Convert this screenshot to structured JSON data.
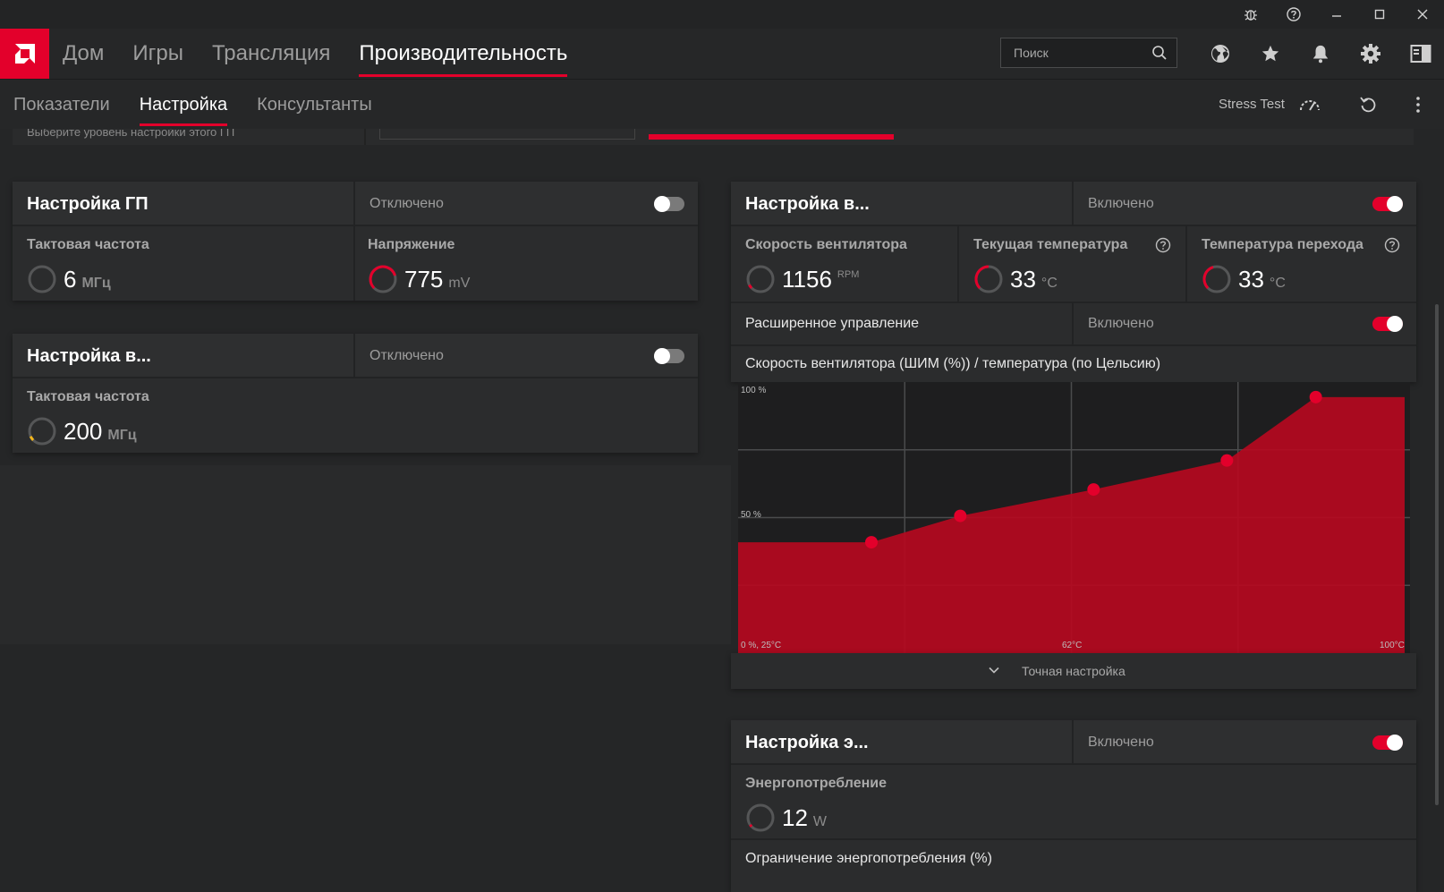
{
  "titlebar": {
    "icons": [
      "bug-icon",
      "help-icon",
      "minimize-icon",
      "maximize-icon",
      "close-icon"
    ]
  },
  "topnav": {
    "tabs": [
      {
        "label": "Дом"
      },
      {
        "label": "Игры"
      },
      {
        "label": "Трансляция"
      },
      {
        "label": "Производительность"
      }
    ],
    "active_tab": "Производительность",
    "search": {
      "placeholder": "Поиск"
    },
    "icons": [
      "globe-icon",
      "star-icon",
      "bell-icon",
      "gear-icon",
      "sidebar-icon"
    ]
  },
  "subnav": {
    "tabs": [
      {
        "label": "Показатели"
      },
      {
        "label": "Настройка"
      },
      {
        "label": "Консультанты"
      }
    ],
    "active_tab": "Настройка",
    "stress_test": "Stress Test",
    "icons": [
      "speedometer-icon",
      "reset-icon",
      "more-vertical-icon"
    ]
  },
  "peek": {
    "text": "Выберите уровень настройки этого ГП"
  },
  "gpu_tuning": {
    "title": "Настройка ГП",
    "status": "Отключено",
    "enabled": false,
    "metrics": [
      {
        "label": "Тактовая частота",
        "value": "6",
        "unit": "МГц"
      },
      {
        "label": "Напряжение",
        "value": "775",
        "unit": "mV"
      }
    ]
  },
  "vram_tuning": {
    "title": "Настройка в...",
    "status": "Отключено",
    "enabled": false,
    "metrics": [
      {
        "label": "Тактовая частота",
        "value": "200",
        "unit": "МГц"
      }
    ]
  },
  "fan_tuning": {
    "title": "Настройка в...",
    "status": "Включено",
    "enabled": true,
    "metrics": [
      {
        "label": "Скорость вентилятора",
        "value": "1156",
        "unit": "RPM"
      },
      {
        "label": "Текущая температура",
        "value": "33",
        "unit": "°C"
      },
      {
        "label": "Температура перехода",
        "value": "33",
        "unit": "°C"
      }
    ],
    "advanced": {
      "label": "Расширенное управление",
      "status": "Включено",
      "enabled": true
    },
    "curve_title": "Скорость вентилятора (ШИМ (%)) / температура (по Цельсию)",
    "fine_tune": "Точная настройка"
  },
  "chart_data": {
    "type": "area",
    "title": "Скорость вентилятора (ШИМ (%)) / температура (по Цельсию)",
    "x_range": [
      25,
      100
    ],
    "y_range": [
      0,
      100
    ],
    "labels": {
      "y_top": "100 %",
      "y_mid": "50 %",
      "origin": "0 %, 25°C",
      "x_mid": "62°C",
      "x_end": "100°C"
    },
    "points": [
      {
        "x": 40,
        "y": 42
      },
      {
        "x": 50,
        "y": 52
      },
      {
        "x": 65,
        "y": 62
      },
      {
        "x": 80,
        "y": 73
      },
      {
        "x": 90,
        "y": 97
      }
    ],
    "fill_color": "#b5091f",
    "point_color": "#e3002b",
    "grid": true
  },
  "power_tuning": {
    "title": "Настройка э...",
    "status": "Включено",
    "enabled": true,
    "metrics": [
      {
        "label": "Энергопотребление",
        "value": "12",
        "unit": "W"
      }
    ],
    "limit_label": "Ограничение энергопотребления (%)"
  },
  "colors": {
    "accent": "#e3002b",
    "background": "#252627",
    "panel": "#2b2c2d"
  }
}
